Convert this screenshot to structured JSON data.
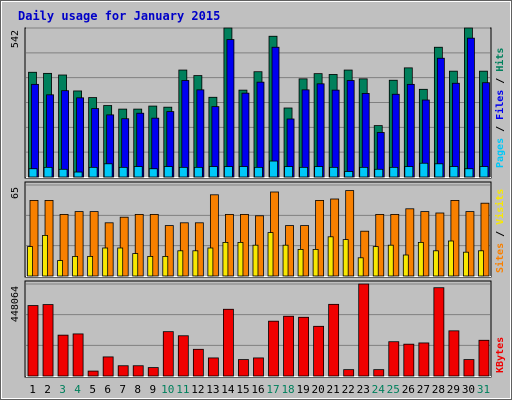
{
  "chart_data": {
    "type": "bar",
    "title": "Daily usage for January 2015",
    "days": [
      "1",
      "2",
      "3",
      "4",
      "5",
      "6",
      "7",
      "8",
      "9",
      "10",
      "11",
      "12",
      "13",
      "14",
      "15",
      "16",
      "17",
      "18",
      "19",
      "20",
      "21",
      "22",
      "23",
      "24",
      "25",
      "26",
      "27",
      "28",
      "29",
      "30",
      "31"
    ],
    "weekend_days": [
      "3",
      "4",
      "10",
      "11",
      "17",
      "18",
      "24",
      "25",
      "31"
    ],
    "panels": [
      {
        "id": "top",
        "scale_label": "542",
        "ylim": [
          0,
          542
        ],
        "right_label": [
          {
            "text": "Pages",
            "color": "#00c8f8"
          },
          {
            "text": " / ",
            "color": "#000000"
          },
          {
            "text": "Files",
            "color": "#0000f0"
          },
          {
            "text": " / ",
            "color": "#000000"
          },
          {
            "text": "Hits",
            "color": "#00805c"
          }
        ],
        "series": [
          {
            "name": "Hits",
            "color": "#00805c",
            "values": [
              381,
              377,
              371,
              313,
              289,
              260,
              247,
              247,
              258,
              254,
              389,
              369,
              290,
              542,
              316,
              383,
              512,
              251,
              357,
              376,
              373,
              389,
              357,
              187,
              352,
              397,
              319,
              472,
              385,
              542,
              385
            ]
          },
          {
            "name": "Files",
            "color": "#0000f0",
            "values": [
              337,
              299,
              314,
              288,
              249,
              226,
              212,
              232,
              214,
              238,
              351,
              317,
              256,
              500,
              305,
              345,
              472,
              211,
              317,
              339,
              316,
              351,
              304,
              162,
              301,
              337,
              280,
              432,
              341,
              505,
              343
            ]
          },
          {
            "name": "Pages",
            "color": "#00c8f8",
            "values": [
              30,
              35,
              28,
              18,
              35,
              48,
              35,
              38,
              30,
              38,
              35,
              35,
              38,
              38,
              38,
              35,
              58,
              38,
              35,
              38,
              35,
              20,
              35,
              28,
              35,
              38,
              50,
              48,
              38,
              30,
              38
            ]
          }
        ]
      },
      {
        "id": "middle",
        "scale_label": "65",
        "ylim": [
          0,
          65
        ],
        "right_label": [
          {
            "text": "Sites",
            "color": "#f88000"
          },
          {
            "text": " / ",
            "color": "#000000"
          },
          {
            "text": "Visits",
            "color": "#f8e800"
          }
        ],
        "series": [
          {
            "name": "Visits",
            "color": "#f88000",
            "values": [
              54,
              54,
              44,
              46,
              46,
              38,
              42,
              44,
              44,
              36,
              38,
              38,
              58,
              44,
              44,
              43,
              60,
              36,
              36,
              54,
              55,
              61,
              32,
              44,
              44,
              48,
              46,
              45,
              54,
              46,
              52
            ]
          },
          {
            "name": "Sites",
            "color": "#f8e800",
            "values": [
              21,
              29,
              11,
              14,
              14,
              20,
              20,
              16,
              14,
              14,
              18,
              18,
              20,
              24,
              24,
              22,
              31,
              22,
              19,
              19,
              28,
              26,
              13,
              21,
              22,
              15,
              24,
              18,
              25,
              17,
              18
            ]
          }
        ]
      },
      {
        "id": "bottom",
        "scale_label": "448064",
        "ylim": [
          0,
          448064
        ],
        "right_label": [
          {
            "text": "KBytes",
            "color": "#f00000"
          }
        ],
        "series": [
          {
            "name": "KBytes",
            "color": "#f00000",
            "values": [
              343158,
              347900,
              199000,
              205000,
              24000,
              93000,
              50000,
              50000,
              41000,
              216000,
              196000,
              130000,
              88000,
              325000,
              80000,
              88000,
              267000,
              291000,
              286000,
              242000,
              349000,
              31000,
              448064,
              31000,
              167000,
              155000,
              161000,
              430000,
              220000,
              80000,
              174000
            ]
          }
        ]
      }
    ]
  }
}
